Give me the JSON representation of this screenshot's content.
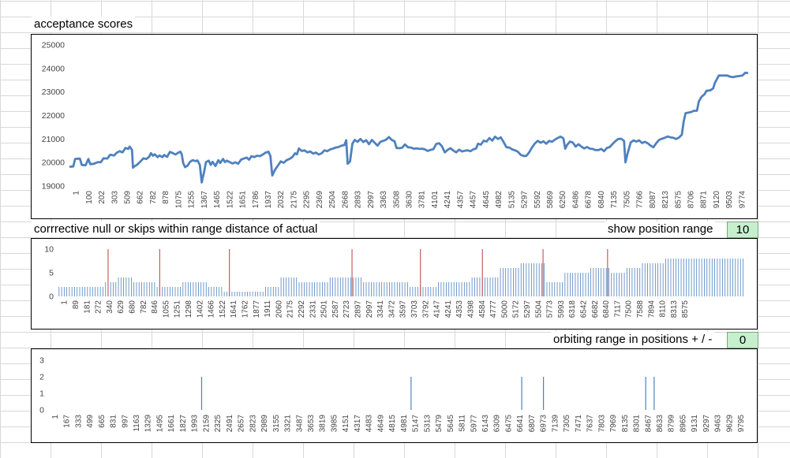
{
  "labels": {
    "acceptance": "acceptance scores",
    "corrective": "corrrective null or skips within range distance of actual",
    "show_position_range": "show position range",
    "orbiting_range": "orbiting range in positions + / -"
  },
  "inputs": {
    "show_position_range_value": "10",
    "orbiting_range_value": "0"
  },
  "chart_data": [
    {
      "id": "acceptance",
      "type": "line",
      "color": "#4f81bd",
      "ylim": [
        19000,
        25000
      ],
      "yticks": [
        19000,
        20000,
        21000,
        22000,
        23000,
        24000,
        25000
      ],
      "x_tick_labels": [
        "1",
        "100",
        "202",
        "303",
        "509",
        "662",
        "782",
        "878",
        "1075",
        "1255",
        "1367",
        "1465",
        "1522",
        "1651",
        "1786",
        "1937",
        "2032",
        "2175",
        "2295",
        "2369",
        "2504",
        "2668",
        "2893",
        "2997",
        "3363",
        "3508",
        "3630",
        "3781",
        "4101",
        "4241",
        "4357",
        "4457",
        "4645",
        "4982",
        "5135",
        "5297",
        "5592",
        "5869",
        "6250",
        "6486",
        "6678",
        "6840",
        "7135",
        "7505",
        "7766",
        "8087",
        "8213",
        "8575",
        "8706",
        "8871",
        "9120",
        "9503",
        "9774"
      ],
      "points": [
        [
          0,
          19820
        ],
        [
          0.4,
          19830
        ],
        [
          0.6,
          20150
        ],
        [
          1.1,
          20170
        ],
        [
          1.3,
          19900
        ],
        [
          1.7,
          19880
        ],
        [
          2.0,
          20150
        ],
        [
          2.2,
          19930
        ],
        [
          2.6,
          19950
        ],
        [
          3.0,
          20020
        ],
        [
          3.3,
          20010
        ],
        [
          3.6,
          20180
        ],
        [
          4.0,
          20170
        ],
        [
          4.3,
          20330
        ],
        [
          4.7,
          20300
        ],
        [
          5.0,
          20420
        ],
        [
          5.3,
          20480
        ],
        [
          5.6,
          20430
        ],
        [
          5.9,
          20620
        ],
        [
          6.2,
          20580
        ],
        [
          6.35,
          20680
        ],
        [
          6.6,
          20530
        ],
        [
          6.7,
          19780
        ],
        [
          6.9,
          19850
        ],
        [
          7.1,
          19890
        ],
        [
          7.5,
          20050
        ],
        [
          7.8,
          20180
        ],
        [
          8.1,
          20150
        ],
        [
          8.4,
          20240
        ],
        [
          8.6,
          20400
        ],
        [
          8.8,
          20290
        ],
        [
          9.0,
          20350
        ],
        [
          9.3,
          20230
        ],
        [
          9.5,
          20300
        ],
        [
          9.8,
          20230
        ],
        [
          10.0,
          20320
        ],
        [
          10.3,
          20240
        ],
        [
          10.6,
          20450
        ],
        [
          10.9,
          20400
        ],
        [
          11.2,
          20340
        ],
        [
          11.5,
          20420
        ],
        [
          11.7,
          20460
        ],
        [
          11.85,
          20350
        ],
        [
          12.0,
          19980
        ],
        [
          12.2,
          19800
        ],
        [
          12.5,
          19880
        ],
        [
          12.7,
          20020
        ],
        [
          13.0,
          20100
        ],
        [
          13.3,
          20060
        ],
        [
          13.5,
          20090
        ],
        [
          13.75,
          19900
        ],
        [
          13.95,
          19150
        ],
        [
          14.2,
          19600
        ],
        [
          14.4,
          20020
        ],
        [
          14.7,
          20080
        ],
        [
          14.9,
          19900
        ],
        [
          15.1,
          20030
        ],
        [
          15.4,
          19850
        ],
        [
          15.7,
          20100
        ],
        [
          15.9,
          19980
        ],
        [
          16.2,
          20150
        ],
        [
          16.4,
          20020
        ],
        [
          16.6,
          20080
        ],
        [
          16.9,
          20020
        ],
        [
          17.2,
          19960
        ],
        [
          17.5,
          20010
        ],
        [
          17.8,
          19950
        ],
        [
          18.1,
          20120
        ],
        [
          18.4,
          20170
        ],
        [
          18.7,
          20210
        ],
        [
          18.95,
          20120
        ],
        [
          19.2,
          20270
        ],
        [
          19.5,
          20230
        ],
        [
          19.8,
          20290
        ],
        [
          20.1,
          20270
        ],
        [
          20.4,
          20340
        ],
        [
          20.7,
          20420
        ],
        [
          21.0,
          20460
        ],
        [
          21.2,
          20280
        ],
        [
          21.4,
          19450
        ],
        [
          21.7,
          19700
        ],
        [
          22.0,
          19870
        ],
        [
          22.3,
          20050
        ],
        [
          22.6,
          19990
        ],
        [
          22.9,
          20100
        ],
        [
          23.2,
          20150
        ],
        [
          23.5,
          20230
        ],
        [
          23.8,
          20390
        ],
        [
          24.0,
          20350
        ],
        [
          24.2,
          20600
        ],
        [
          24.5,
          20490
        ],
        [
          24.8,
          20520
        ],
        [
          25.1,
          20430
        ],
        [
          25.4,
          20470
        ],
        [
          25.7,
          20380
        ],
        [
          26.0,
          20420
        ],
        [
          26.3,
          20340
        ],
        [
          26.6,
          20390
        ],
        [
          26.9,
          20520
        ],
        [
          27.2,
          20480
        ],
        [
          27.5,
          20560
        ],
        [
          27.8,
          20590
        ],
        [
          28.1,
          20640
        ],
        [
          28.4,
          20660
        ],
        [
          28.7,
          20720
        ],
        [
          29.0,
          20740
        ],
        [
          29.2,
          20950
        ],
        [
          29.35,
          19950
        ],
        [
          29.6,
          20040
        ],
        [
          29.85,
          20800
        ],
        [
          30.1,
          20960
        ],
        [
          30.4,
          20880
        ],
        [
          30.7,
          21000
        ],
        [
          31.0,
          20870
        ],
        [
          31.3,
          20950
        ],
        [
          31.6,
          20780
        ],
        [
          31.9,
          20960
        ],
        [
          32.2,
          20840
        ],
        [
          32.5,
          20720
        ],
        [
          32.8,
          20880
        ],
        [
          33.1,
          20920
        ],
        [
          33.4,
          20970
        ],
        [
          33.7,
          21080
        ],
        [
          34.0,
          20960
        ],
        [
          34.3,
          20900
        ],
        [
          34.5,
          20620
        ],
        [
          34.8,
          20610
        ],
        [
          35.1,
          20630
        ],
        [
          35.4,
          20770
        ],
        [
          35.7,
          20650
        ],
        [
          36.0,
          20640
        ],
        [
          36.3,
          20590
        ],
        [
          36.6,
          20600
        ],
        [
          36.9,
          20580
        ],
        [
          37.2,
          20590
        ],
        [
          37.5,
          20560
        ],
        [
          37.8,
          20490
        ],
        [
          38.1,
          20540
        ],
        [
          38.4,
          20570
        ],
        [
          38.7,
          20790
        ],
        [
          39.0,
          20820
        ],
        [
          39.3,
          20690
        ],
        [
          39.6,
          20430
        ],
        [
          39.9,
          20540
        ],
        [
          40.2,
          20610
        ],
        [
          40.5,
          20510
        ],
        [
          40.8,
          20430
        ],
        [
          41.1,
          20550
        ],
        [
          41.4,
          20470
        ],
        [
          41.7,
          20500
        ],
        [
          42.0,
          20520
        ],
        [
          42.3,
          20480
        ],
        [
          42.6,
          20560
        ],
        [
          42.9,
          20600
        ],
        [
          43.1,
          20800
        ],
        [
          43.4,
          20760
        ],
        [
          43.7,
          20930
        ],
        [
          44.0,
          20890
        ],
        [
          44.3,
          21040
        ],
        [
          44.6,
          20930
        ],
        [
          44.9,
          21100
        ],
        [
          45.2,
          21000
        ],
        [
          45.5,
          21070
        ],
        [
          45.8,
          20870
        ],
        [
          46.1,
          20650
        ],
        [
          46.4,
          20640
        ],
        [
          46.7,
          20560
        ],
        [
          47.0,
          20520
        ],
        [
          47.3,
          20460
        ],
        [
          47.6,
          20330
        ],
        [
          47.9,
          20280
        ],
        [
          48.2,
          20280
        ],
        [
          48.5,
          20430
        ],
        [
          48.8,
          20640
        ],
        [
          49.1,
          20810
        ],
        [
          49.4,
          20920
        ],
        [
          49.7,
          20840
        ],
        [
          50.0,
          20900
        ],
        [
          50.3,
          20800
        ],
        [
          50.6,
          20920
        ],
        [
          50.9,
          20880
        ],
        [
          51.2,
          20970
        ],
        [
          51.5,
          21040
        ],
        [
          51.8,
          21100
        ],
        [
          52.1,
          21030
        ],
        [
          52.3,
          20590
        ],
        [
          52.5,
          20750
        ],
        [
          52.8,
          20890
        ],
        [
          53.1,
          20850
        ],
        [
          53.4,
          20680
        ],
        [
          53.7,
          20780
        ],
        [
          54.0,
          20680
        ],
        [
          54.3,
          20600
        ],
        [
          54.6,
          20660
        ],
        [
          54.9,
          20590
        ],
        [
          55.2,
          20580
        ],
        [
          55.5,
          20530
        ],
        [
          55.8,
          20530
        ],
        [
          56.1,
          20580
        ],
        [
          56.4,
          20480
        ],
        [
          56.7,
          20620
        ],
        [
          57.0,
          20660
        ],
        [
          57.3,
          20790
        ],
        [
          57.6,
          20910
        ],
        [
          57.9,
          21000
        ],
        [
          58.2,
          21010
        ],
        [
          58.5,
          20920
        ],
        [
          58.65,
          20010
        ],
        [
          58.9,
          20420
        ],
        [
          59.2,
          20850
        ],
        [
          59.5,
          20940
        ],
        [
          59.8,
          20890
        ],
        [
          60.1,
          20940
        ],
        [
          60.4,
          20830
        ],
        [
          60.7,
          20880
        ],
        [
          61.0,
          20820
        ],
        [
          61.3,
          20720
        ],
        [
          61.6,
          20650
        ],
        [
          61.9,
          20820
        ],
        [
          62.2,
          20960
        ],
        [
          62.5,
          21010
        ],
        [
          62.8,
          21050
        ],
        [
          63.1,
          21110
        ],
        [
          63.4,
          21070
        ],
        [
          63.7,
          21050
        ],
        [
          64.0,
          21000
        ],
        [
          64.3,
          21060
        ],
        [
          64.6,
          21180
        ],
        [
          64.8,
          21750
        ],
        [
          65.0,
          22100
        ],
        [
          65.3,
          22120
        ],
        [
          65.6,
          22150
        ],
        [
          65.9,
          22200
        ],
        [
          66.2,
          22200
        ],
        [
          66.4,
          22600
        ],
        [
          66.7,
          22800
        ],
        [
          67.0,
          22900
        ],
        [
          67.2,
          23050
        ],
        [
          67.6,
          23070
        ],
        [
          67.9,
          23150
        ],
        [
          68.1,
          23400
        ],
        [
          68.3,
          23550
        ],
        [
          68.5,
          23700
        ],
        [
          69.0,
          23700
        ],
        [
          69.4,
          23700
        ],
        [
          69.7,
          23650
        ],
        [
          70.0,
          23630
        ],
        [
          70.3,
          23660
        ],
        [
          70.7,
          23680
        ],
        [
          71.0,
          23700
        ],
        [
          71.3,
          23820
        ],
        [
          71.6,
          23800
        ]
      ]
    },
    {
      "id": "corrective",
      "type": "bar",
      "color": "#4f81bd",
      "highlight_color": "#c0504d",
      "ylim": [
        0,
        10
      ],
      "yticks": [
        0,
        5,
        10
      ],
      "x_tick_labels": [
        "1",
        "89",
        "181",
        "272",
        "340",
        "629",
        "680",
        "782",
        "846",
        "1055",
        "1251",
        "1298",
        "1402",
        "1466",
        "1522",
        "1641",
        "1762",
        "1877",
        "1911",
        "2060",
        "2175",
        "2292",
        "2331",
        "2501",
        "2587",
        "2723",
        "2897",
        "2997",
        "3341",
        "3472",
        "3597",
        "3703",
        "3792",
        "4147",
        "4241",
        "4353",
        "4398",
        "4584",
        "4777",
        "5000",
        "5172",
        "5297",
        "5504",
        "5773",
        "5993",
        "6318",
        "6542",
        "6682",
        "6840",
        "7117",
        "7500",
        "7588",
        "7894",
        "8110",
        "8313",
        "8575"
      ],
      "highlight_indices": [
        38,
        78,
        132,
        227,
        280,
        328,
        375,
        425
      ],
      "segments": [
        {
          "start": 0,
          "end": 35,
          "value": 2
        },
        {
          "start": 35,
          "end": 45,
          "value": 3
        },
        {
          "start": 45,
          "end": 58,
          "value": 4
        },
        {
          "start": 58,
          "end": 75,
          "value": 3
        },
        {
          "start": 75,
          "end": 95,
          "value": 2
        },
        {
          "start": 95,
          "end": 115,
          "value": 3
        },
        {
          "start": 115,
          "end": 128,
          "value": 2
        },
        {
          "start": 128,
          "end": 160,
          "value": 1
        },
        {
          "start": 160,
          "end": 172,
          "value": 2
        },
        {
          "start": 172,
          "end": 185,
          "value": 4
        },
        {
          "start": 185,
          "end": 210,
          "value": 3
        },
        {
          "start": 210,
          "end": 235,
          "value": 4
        },
        {
          "start": 235,
          "end": 272,
          "value": 3
        },
        {
          "start": 272,
          "end": 293,
          "value": 2
        },
        {
          "start": 293,
          "end": 320,
          "value": 3
        },
        {
          "start": 320,
          "end": 342,
          "value": 4
        },
        {
          "start": 342,
          "end": 358,
          "value": 6
        },
        {
          "start": 358,
          "end": 378,
          "value": 7
        },
        {
          "start": 378,
          "end": 392,
          "value": 3
        },
        {
          "start": 392,
          "end": 412,
          "value": 5
        },
        {
          "start": 412,
          "end": 428,
          "value": 6
        },
        {
          "start": 428,
          "end": 440,
          "value": 5
        },
        {
          "start": 440,
          "end": 452,
          "value": 6
        },
        {
          "start": 452,
          "end": 470,
          "value": 7
        },
        {
          "start": 470,
          "end": 532,
          "value": 8
        }
      ],
      "bar_count": 532
    },
    {
      "id": "orbiting",
      "type": "bar",
      "color": "#4f81bd",
      "ylim": [
        0,
        3
      ],
      "yticks": [
        0,
        1,
        2,
        3
      ],
      "x_tick_labels": [
        "1",
        "167",
        "333",
        "499",
        "665",
        "831",
        "997",
        "1163",
        "1329",
        "1495",
        "1661",
        "1827",
        "1993",
        "2159",
        "2325",
        "2491",
        "2657",
        "2823",
        "2989",
        "3155",
        "3321",
        "3487",
        "3653",
        "3819",
        "3985",
        "4151",
        "4317",
        "4483",
        "4649",
        "4815",
        "4981",
        "5147",
        "5313",
        "5479",
        "5645",
        "5811",
        "5977",
        "6143",
        "6309",
        "6475",
        "6641",
        "6807",
        "6973",
        "7139",
        "7305",
        "7471",
        "7637",
        "7803",
        "7969",
        "8135",
        "8301",
        "8467",
        "8633",
        "8799",
        "8965",
        "9131",
        "9297",
        "9463",
        "9629",
        "9795"
      ],
      "x_max": 9960,
      "spikes": [
        {
          "x": 2180,
          "value": 2
        },
        {
          "x": 5170,
          "value": 2
        },
        {
          "x": 6750,
          "value": 2
        },
        {
          "x": 7060,
          "value": 2
        },
        {
          "x": 8520,
          "value": 2
        },
        {
          "x": 8640,
          "value": 2
        }
      ]
    }
  ]
}
